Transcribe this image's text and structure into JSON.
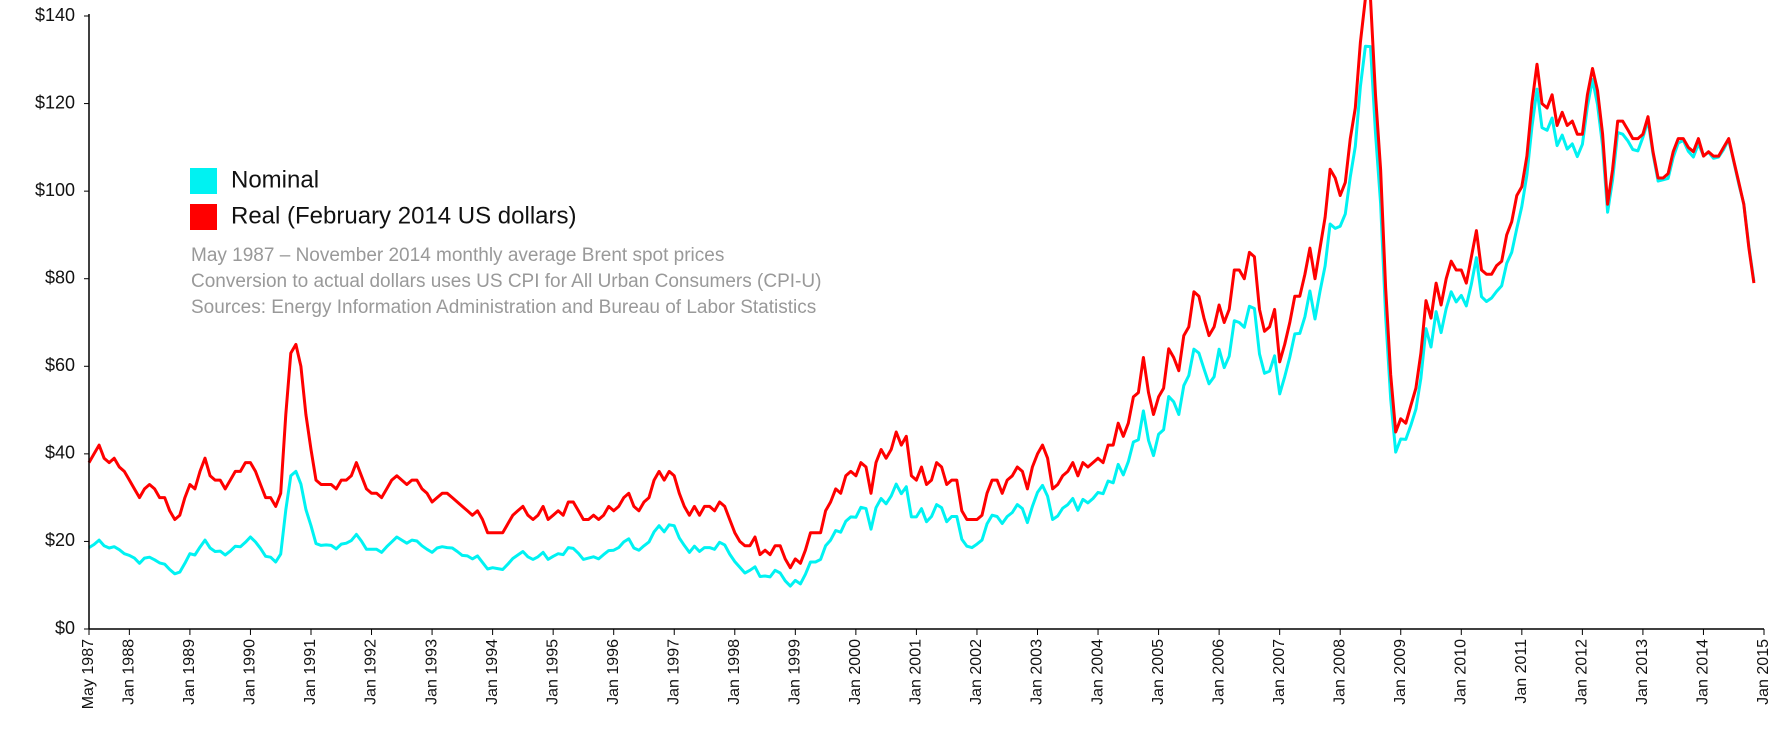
{
  "chart_data": {
    "type": "line",
    "x": [
      "1987-05",
      "1987-06",
      "1987-07",
      "1987-08",
      "1987-09",
      "1987-10",
      "1987-11",
      "1987-12",
      "1988-01",
      "1988-02",
      "1988-03",
      "1988-04",
      "1988-05",
      "1988-06",
      "1988-07",
      "1988-08",
      "1988-09",
      "1988-10",
      "1988-11",
      "1988-12",
      "1989-01",
      "1989-02",
      "1989-03",
      "1989-04",
      "1989-05",
      "1989-06",
      "1989-07",
      "1989-08",
      "1989-09",
      "1989-10",
      "1989-11",
      "1989-12",
      "1990-01",
      "1990-02",
      "1990-03",
      "1990-04",
      "1990-05",
      "1990-06",
      "1990-07",
      "1990-08",
      "1990-09",
      "1990-10",
      "1990-11",
      "1990-12",
      "1991-01",
      "1991-02",
      "1991-03",
      "1991-04",
      "1991-05",
      "1991-06",
      "1991-07",
      "1991-08",
      "1991-09",
      "1991-10",
      "1991-11",
      "1991-12",
      "1992-01",
      "1992-02",
      "1992-03",
      "1992-04",
      "1992-05",
      "1992-06",
      "1992-07",
      "1992-08",
      "1992-09",
      "1992-10",
      "1992-11",
      "1992-12",
      "1993-01",
      "1993-02",
      "1993-03",
      "1993-04",
      "1993-05",
      "1993-06",
      "1993-07",
      "1993-08",
      "1993-09",
      "1993-10",
      "1993-11",
      "1993-12",
      "1994-01",
      "1994-02",
      "1994-03",
      "1994-04",
      "1994-05",
      "1994-06",
      "1994-07",
      "1994-08",
      "1994-09",
      "1994-10",
      "1994-11",
      "1994-12",
      "1995-01",
      "1995-02",
      "1995-03",
      "1995-04",
      "1995-05",
      "1995-06",
      "1995-07",
      "1995-08",
      "1995-09",
      "1995-10",
      "1995-11",
      "1995-12",
      "1996-01",
      "1996-02",
      "1996-03",
      "1996-04",
      "1996-05",
      "1996-06",
      "1996-07",
      "1996-08",
      "1996-09",
      "1996-10",
      "1996-11",
      "1996-12",
      "1997-01",
      "1997-02",
      "1997-03",
      "1997-04",
      "1997-05",
      "1997-06",
      "1997-07",
      "1997-08",
      "1997-09",
      "1997-10",
      "1997-11",
      "1997-12",
      "1998-01",
      "1998-02",
      "1998-03",
      "1998-04",
      "1998-05",
      "1998-06",
      "1998-07",
      "1998-08",
      "1998-09",
      "1998-10",
      "1998-11",
      "1998-12",
      "1999-01",
      "1999-02",
      "1999-03",
      "1999-04",
      "1999-05",
      "1999-06",
      "1999-07",
      "1999-08",
      "1999-09",
      "1999-10",
      "1999-11",
      "1999-12",
      "2000-01",
      "2000-02",
      "2000-03",
      "2000-04",
      "2000-05",
      "2000-06",
      "2000-07",
      "2000-08",
      "2000-09",
      "2000-10",
      "2000-11",
      "2000-12",
      "2001-01",
      "2001-02",
      "2001-03",
      "2001-04",
      "2001-05",
      "2001-06",
      "2001-07",
      "2001-08",
      "2001-09",
      "2001-10",
      "2001-11",
      "2001-12",
      "2002-01",
      "2002-02",
      "2002-03",
      "2002-04",
      "2002-05",
      "2002-06",
      "2002-07",
      "2002-08",
      "2002-09",
      "2002-10",
      "2002-11",
      "2002-12",
      "2003-01",
      "2003-02",
      "2003-03",
      "2003-04",
      "2003-05",
      "2003-06",
      "2003-07",
      "2003-08",
      "2003-09",
      "2003-10",
      "2003-11",
      "2003-12",
      "2004-01",
      "2004-02",
      "2004-03",
      "2004-04",
      "2004-05",
      "2004-06",
      "2004-07",
      "2004-08",
      "2004-09",
      "2004-10",
      "2004-11",
      "2004-12",
      "2005-01",
      "2005-02",
      "2005-03",
      "2005-04",
      "2005-05",
      "2005-06",
      "2005-07",
      "2005-08",
      "2005-09",
      "2005-10",
      "2005-11",
      "2005-12",
      "2006-01",
      "2006-02",
      "2006-03",
      "2006-04",
      "2006-05",
      "2006-06",
      "2006-07",
      "2006-08",
      "2006-09",
      "2006-10",
      "2006-11",
      "2006-12",
      "2007-01",
      "2007-02",
      "2007-03",
      "2007-04",
      "2007-05",
      "2007-06",
      "2007-07",
      "2007-08",
      "2007-09",
      "2007-10",
      "2007-11",
      "2007-12",
      "2008-01",
      "2008-02",
      "2008-03",
      "2008-04",
      "2008-05",
      "2008-06",
      "2008-07",
      "2008-08",
      "2008-09",
      "2008-10",
      "2008-11",
      "2008-12",
      "2009-01",
      "2009-02",
      "2009-03",
      "2009-04",
      "2009-05",
      "2009-06",
      "2009-07",
      "2009-08",
      "2009-09",
      "2009-10",
      "2009-11",
      "2009-12",
      "2010-01",
      "2010-02",
      "2010-03",
      "2010-04",
      "2010-05",
      "2010-06",
      "2010-07",
      "2010-08",
      "2010-09",
      "2010-10",
      "2010-11",
      "2010-12",
      "2011-01",
      "2011-02",
      "2011-03",
      "2011-04",
      "2011-05",
      "2011-06",
      "2011-07",
      "2011-08",
      "2011-09",
      "2011-10",
      "2011-11",
      "2011-12",
      "2012-01",
      "2012-02",
      "2012-03",
      "2012-04",
      "2012-05",
      "2012-06",
      "2012-07",
      "2012-08",
      "2012-09",
      "2012-10",
      "2012-11",
      "2012-12",
      "2013-01",
      "2013-02",
      "2013-03",
      "2013-04",
      "2013-05",
      "2013-06",
      "2013-07",
      "2013-08",
      "2013-09",
      "2013-10",
      "2013-11",
      "2013-12",
      "2014-01",
      "2014-02",
      "2014-03",
      "2014-04",
      "2014-05",
      "2014-06",
      "2014-07",
      "2014-08",
      "2014-09",
      "2014-10",
      "2014-11"
    ],
    "series": [
      {
        "name": "Nominal",
        "color": "#00f2f2",
        "values": [
          18.6,
          19.3,
          20.3,
          19.0,
          18.5,
          18.8,
          18.1,
          17.2,
          16.8,
          16.2,
          15.0,
          16.2,
          16.4,
          15.8,
          15.1,
          14.8,
          13.6,
          12.6,
          13.0,
          15.0,
          17.2,
          16.9,
          18.7,
          20.3,
          18.5,
          17.7,
          17.8,
          16.9,
          17.8,
          18.9,
          18.8,
          19.8,
          21.0,
          19.9,
          18.4,
          16.6,
          16.4,
          15.3,
          17.1,
          27.2,
          35.0,
          36.0,
          33.1,
          27.3,
          23.6,
          19.5,
          19.1,
          19.2,
          19.1,
          18.3,
          19.4,
          19.6,
          20.2,
          21.6,
          20.1,
          18.2,
          18.2,
          18.2,
          17.5,
          18.8,
          19.9,
          21.0,
          20.3,
          19.6,
          20.3,
          20.1,
          19.0,
          18.2,
          17.5,
          18.5,
          18.8,
          18.6,
          18.5,
          17.7,
          16.8,
          16.7,
          16.0,
          16.7,
          15.2,
          13.7,
          14.0,
          13.8,
          13.6,
          14.8,
          16.1,
          16.9,
          17.7,
          16.5,
          15.9,
          16.5,
          17.5,
          15.9,
          16.6,
          17.2,
          17.0,
          18.6,
          18.4,
          17.3,
          15.9,
          16.2,
          16.5,
          16.0,
          17.0,
          17.9,
          18.0,
          18.6,
          19.9,
          20.6,
          18.5,
          18.0,
          19.0,
          19.9,
          22.2,
          23.6,
          22.2,
          23.8,
          23.6,
          20.8,
          19.1,
          17.5,
          18.9,
          17.7,
          18.6,
          18.6,
          18.2,
          19.8,
          19.2,
          17.1,
          15.4,
          14.1,
          12.8,
          13.4,
          14.2,
          12.0,
          12.1,
          11.9,
          13.4,
          12.8,
          11.0,
          9.8,
          11.1,
          10.3,
          12.5,
          15.3,
          15.3,
          15.9,
          19.0,
          20.3,
          22.5,
          22.1,
          24.6,
          25.6,
          25.5,
          27.8,
          27.5,
          22.8,
          27.7,
          29.8,
          28.6,
          30.4,
          33.1,
          30.9,
          32.5,
          25.6,
          25.6,
          27.5,
          24.5,
          25.7,
          28.4,
          27.7,
          24.5,
          25.7,
          25.7,
          20.5,
          18.9,
          18.6,
          19.4,
          20.3,
          24.0,
          26.0,
          25.7,
          24.1,
          25.7,
          26.6,
          28.4,
          27.5,
          24.3,
          28.0,
          31.2,
          32.8,
          30.3,
          25.0,
          25.8,
          27.6,
          28.4,
          29.8,
          27.1,
          29.6,
          28.8,
          29.8,
          31.2,
          30.9,
          33.8,
          33.4,
          37.6,
          35.2,
          38.2,
          42.7,
          43.2,
          49.8,
          43.1,
          39.6,
          44.5,
          45.5,
          53.1,
          51.9,
          49.0,
          55.6,
          57.9,
          63.9,
          63.0,
          59.4,
          56.0,
          57.6,
          63.9,
          59.7,
          62.3,
          70.4,
          70.0,
          68.9,
          73.7,
          73.2,
          62.8,
          58.4,
          58.9,
          62.4,
          53.7,
          57.6,
          62.1,
          67.4,
          67.5,
          71.3,
          77.2,
          70.8,
          77.1,
          82.9,
          92.5,
          91.5,
          92.0,
          94.8,
          103.3,
          110.2,
          123.9,
          133.1,
          133.0,
          113.2,
          97.2,
          71.6,
          52.5,
          40.4,
          43.4,
          43.3,
          46.5,
          50.2,
          57.3,
          68.6,
          64.4,
          72.5,
          67.7,
          73.2,
          77.0,
          74.7,
          76.2,
          73.8,
          78.8,
          84.8,
          75.9,
          74.8,
          75.6,
          77.1,
          78.4,
          83.5,
          86.0,
          91.5,
          96.5,
          103.7,
          114.6,
          123.3,
          114.5,
          113.9,
          116.7,
          110.4,
          112.8,
          109.6,
          110.8,
          107.9,
          110.7,
          119.3,
          125.5,
          119.8,
          110.3,
          95.2,
          102.6,
          113.4,
          113.0,
          111.5,
          109.5,
          109.2,
          112.3,
          116.1,
          108.5,
          102.3,
          102.6,
          102.9,
          107.7,
          111.0,
          111.6,
          109.1,
          107.8,
          110.8,
          108.1,
          108.9,
          107.5,
          107.8,
          109.5,
          111.8,
          106.8,
          101.6,
          97.1,
          87.4,
          79.4
        ]
      },
      {
        "name": "Real (February 2014 US dollars)",
        "color": "#ff0000",
        "values": [
          38,
          40,
          42,
          39,
          38,
          39,
          37,
          36,
          34,
          32,
          30,
          32,
          33,
          32,
          30,
          30,
          27,
          25,
          26,
          30,
          33,
          32,
          36,
          39,
          35,
          34,
          34,
          32,
          34,
          36,
          36,
          38,
          38,
          36,
          33,
          30,
          30,
          28,
          31,
          49,
          63,
          65,
          60,
          49,
          41,
          34,
          33,
          33,
          33,
          32,
          34,
          34,
          35,
          38,
          35,
          32,
          31,
          31,
          30,
          32,
          34,
          35,
          34,
          33,
          34,
          34,
          32,
          31,
          29,
          30,
          31,
          31,
          30,
          29,
          28,
          27,
          26,
          27,
          25,
          22,
          22,
          22,
          22,
          24,
          26,
          27,
          28,
          26,
          25,
          26,
          28,
          25,
          26,
          27,
          26,
          29,
          29,
          27,
          25,
          25,
          26,
          25,
          26,
          28,
          27,
          28,
          30,
          31,
          28,
          27,
          29,
          30,
          34,
          36,
          34,
          36,
          35,
          31,
          28,
          26,
          28,
          26,
          28,
          28,
          27,
          29,
          28,
          25,
          22,
          20,
          19,
          19,
          21,
          17,
          18,
          17,
          19,
          19,
          16,
          14,
          16,
          15,
          18,
          22,
          22,
          22,
          27,
          29,
          32,
          31,
          35,
          36,
          35,
          38,
          37,
          31,
          38,
          41,
          39,
          41,
          45,
          42,
          44,
          35,
          34,
          37,
          33,
          34,
          38,
          37,
          33,
          34,
          34,
          27,
          25,
          25,
          25,
          26,
          31,
          34,
          34,
          31,
          34,
          35,
          37,
          36,
          32,
          37,
          40,
          42,
          39,
          32,
          33,
          35,
          36,
          38,
          35,
          38,
          37,
          38,
          39,
          38,
          42,
          42,
          47,
          44,
          47,
          53,
          54,
          62,
          54,
          49,
          53,
          55,
          64,
          62,
          59,
          67,
          69,
          77,
          76,
          71,
          67,
          69,
          74,
          70,
          73,
          82,
          82,
          80,
          86,
          85,
          73,
          68,
          69,
          73,
          61,
          65,
          70,
          76,
          76,
          81,
          87,
          80,
          87,
          94,
          105,
          103,
          99,
          102,
          112,
          119,
          134,
          144,
          144,
          122,
          105,
          78,
          58,
          45,
          48,
          47,
          51,
          55,
          63,
          75,
          71,
          79,
          74,
          80,
          84,
          82,
          82,
          79,
          85,
          91,
          82,
          81,
          81,
          83,
          84,
          90,
          93,
          99,
          101,
          108,
          120,
          129,
          120,
          119,
          122,
          115,
          118,
          115,
          116,
          113,
          113,
          122,
          128,
          123,
          113,
          97,
          105,
          116,
          116,
          114,
          112,
          112,
          113,
          117,
          109,
          103,
          103,
          104,
          109,
          112,
          112,
          110,
          109,
          112,
          108,
          109,
          108,
          108,
          110,
          112,
          107,
          102,
          97,
          87,
          79
        ]
      }
    ],
    "xlim": [
      "1987-05",
      "2015-01"
    ],
    "xticks": [
      {
        "value": "1987-05",
        "label": "May 1987"
      },
      {
        "value": "1988-01",
        "label": "Jan 1988"
      },
      {
        "value": "1989-01",
        "label": "Jan 1989"
      },
      {
        "value": "1990-01",
        "label": "Jan 1990"
      },
      {
        "value": "1991-01",
        "label": "Jan 1991"
      },
      {
        "value": "1992-01",
        "label": "Jan 1992"
      },
      {
        "value": "1993-01",
        "label": "Jan 1993"
      },
      {
        "value": "1994-01",
        "label": "Jan 1994"
      },
      {
        "value": "1995-01",
        "label": "Jan 1995"
      },
      {
        "value": "1996-01",
        "label": "Jan 1996"
      },
      {
        "value": "1997-01",
        "label": "Jan 1997"
      },
      {
        "value": "1998-01",
        "label": "Jan 1998"
      },
      {
        "value": "1999-01",
        "label": "Jan 1999"
      },
      {
        "value": "2000-01",
        "label": "Jan 2000"
      },
      {
        "value": "2001-01",
        "label": "Jan 2001"
      },
      {
        "value": "2002-01",
        "label": "Jan 2002"
      },
      {
        "value": "2003-01",
        "label": "Jan 2003"
      },
      {
        "value": "2004-01",
        "label": "Jan 2004"
      },
      {
        "value": "2005-01",
        "label": "Jan 2005"
      },
      {
        "value": "2006-01",
        "label": "Jan 2006"
      },
      {
        "value": "2007-01",
        "label": "Jan 2007"
      },
      {
        "value": "2008-01",
        "label": "Jan 2008"
      },
      {
        "value": "2009-01",
        "label": "Jan 2009"
      },
      {
        "value": "2010-01",
        "label": "Jan 2010"
      },
      {
        "value": "2011-01",
        "label": "Jan 2011"
      },
      {
        "value": "2012-01",
        "label": "Jan 2012"
      },
      {
        "value": "2013-01",
        "label": "Jan 2013"
      },
      {
        "value": "2014-01",
        "label": "Jan 2014"
      },
      {
        "value": "2015-01",
        "label": "Jan 2015"
      }
    ],
    "ylim": [
      0,
      140
    ],
    "yticks": [
      {
        "value": 0,
        "label": "$0"
      },
      {
        "value": 20,
        "label": "$20"
      },
      {
        "value": 40,
        "label": "$40"
      },
      {
        "value": 60,
        "label": "$60"
      },
      {
        "value": 80,
        "label": "$80"
      },
      {
        "value": 100,
        "label": "$100"
      },
      {
        "value": 120,
        "label": "$120"
      },
      {
        "value": 140,
        "label": "$140"
      }
    ],
    "grid": false,
    "annotations": [
      "May 1987 – November 2014 monthly average Brent spot prices",
      "Conversion to actual dollars uses US CPI for All Urban Consumers (CPI-U)",
      "Sources: Energy Information Administration and Bureau of Labor Statistics"
    ]
  }
}
